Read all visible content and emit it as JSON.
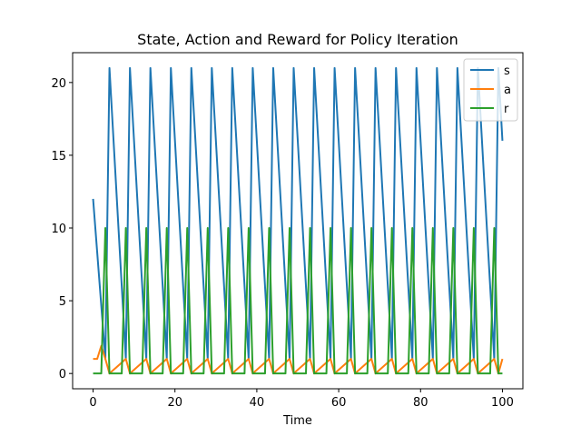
{
  "chart_data": {
    "type": "line",
    "title": "State, Action and Reward for Policy Iteration",
    "xlabel": "Time",
    "ylabel": "",
    "xlim": [
      -5,
      105
    ],
    "ylim": [
      -1.05,
      22.05
    ],
    "xticks": [
      0,
      20,
      40,
      60,
      80,
      100
    ],
    "yticks": [
      0,
      5,
      10,
      15,
      20
    ],
    "grid": false,
    "legend_position": "top-right",
    "series": [
      {
        "name": "s",
        "color": "#1f77b4",
        "x": [
          0,
          3,
          4,
          8,
          9,
          13,
          14,
          18,
          19,
          23,
          24,
          28,
          29,
          33,
          34,
          38,
          39,
          43,
          44,
          48,
          49,
          53,
          54,
          58,
          59,
          63,
          64,
          68,
          69,
          73,
          74,
          78,
          79,
          83,
          84,
          88,
          89,
          93,
          94,
          98,
          99,
          100
        ],
        "values": [
          12,
          1,
          21,
          1,
          21,
          1,
          21,
          1,
          21,
          1,
          21,
          1,
          21,
          1,
          21,
          1,
          21,
          1,
          21,
          1,
          21,
          1,
          21,
          1,
          21,
          1,
          21,
          1,
          21,
          1,
          21,
          1,
          21,
          1,
          21,
          1,
          21,
          1,
          21,
          1,
          21,
          16
        ]
      },
      {
        "name": "a",
        "color": "#ff7f0e",
        "x": [
          0,
          1,
          2,
          3,
          4,
          8,
          9,
          13,
          14,
          18,
          19,
          23,
          24,
          28,
          29,
          33,
          34,
          38,
          39,
          43,
          44,
          48,
          49,
          53,
          54,
          58,
          59,
          63,
          64,
          68,
          69,
          73,
          74,
          78,
          79,
          83,
          84,
          88,
          89,
          93,
          94,
          98,
          99,
          100
        ],
        "values": [
          1,
          1,
          1.9,
          1,
          0,
          1,
          0,
          1,
          0,
          1,
          0,
          1,
          0,
          1,
          0,
          1,
          0,
          1,
          0,
          1,
          0,
          1,
          0,
          1,
          0,
          1,
          0,
          1,
          0,
          1,
          0,
          1,
          0,
          1,
          0,
          1,
          0,
          1,
          0,
          1,
          0,
          1,
          0,
          1
        ]
      },
      {
        "name": "r",
        "color": "#2ca02c",
        "x": [
          0,
          2,
          3,
          4,
          7,
          8,
          9,
          12,
          13,
          14,
          17,
          18,
          19,
          22,
          23,
          24,
          27,
          28,
          29,
          32,
          33,
          34,
          37,
          38,
          39,
          42,
          43,
          44,
          47,
          48,
          49,
          52,
          53,
          54,
          57,
          58,
          59,
          62,
          63,
          64,
          67,
          68,
          69,
          72,
          73,
          74,
          77,
          78,
          79,
          82,
          83,
          84,
          87,
          88,
          89,
          92,
          93,
          94,
          97,
          98,
          99,
          100
        ],
        "values": [
          0,
          0,
          10,
          0,
          0,
          10,
          0,
          0,
          10,
          0,
          0,
          10,
          0,
          0,
          10,
          0,
          0,
          10,
          0,
          0,
          10,
          0,
          0,
          10,
          0,
          0,
          10,
          0,
          0,
          10,
          0,
          0,
          10,
          0,
          0,
          10,
          0,
          0,
          10,
          0,
          0,
          10,
          0,
          0,
          10,
          0,
          0,
          10,
          0,
          0,
          10,
          0,
          0,
          10,
          0,
          0,
          10,
          0,
          0,
          10,
          0,
          0
        ]
      }
    ]
  }
}
